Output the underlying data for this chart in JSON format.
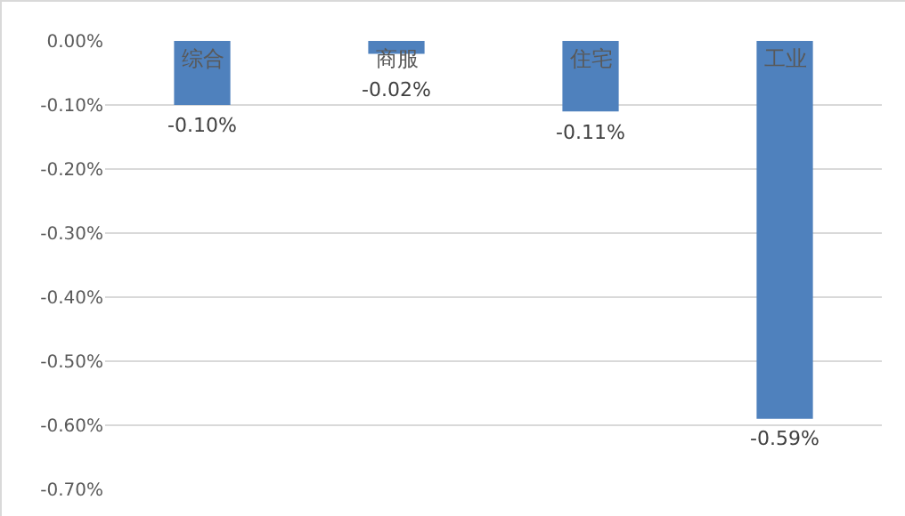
{
  "chart_data": {
    "type": "bar",
    "categories": [
      "综合",
      "商服",
      "住宅",
      "工业"
    ],
    "values": [
      -0.1,
      -0.02,
      -0.11,
      -0.59
    ],
    "color": "#4f81bd",
    "value_labels": [
      "-0.10%",
      "-0.02%",
      "-0.11%",
      "-0.59%"
    ],
    "ylim": [
      -0.7,
      0
    ],
    "yticks": [
      {
        "value": 0,
        "label": "0.00%"
      },
      {
        "value": -0.1,
        "label": "-0.10%"
      },
      {
        "value": -0.2,
        "label": "-0.20%"
      },
      {
        "value": -0.3,
        "label": "-0.30%"
      },
      {
        "value": -0.4,
        "label": "-0.40%"
      },
      {
        "value": -0.5,
        "label": "-0.50%"
      },
      {
        "value": -0.6,
        "label": "-0.60%"
      },
      {
        "value": -0.7,
        "label": "-0.70%"
      }
    ],
    "grid": "y"
  }
}
